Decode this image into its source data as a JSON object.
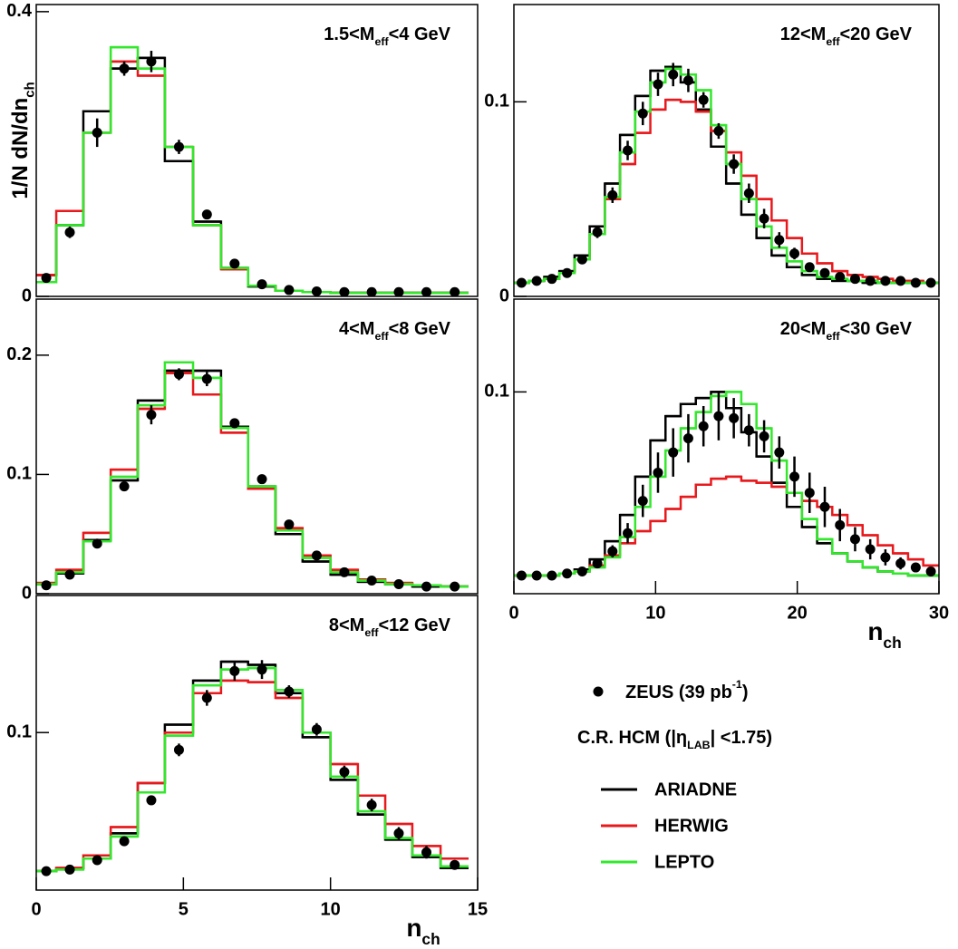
{
  "chart_data": [
    {
      "type": "histogram",
      "label": [
        {
          "text": "1.5<M"
        },
        {
          "text": "eff",
          "pos": "sub"
        },
        {
          "text": "<4 GeV"
        }
      ],
      "ylabel": [
        {
          "text": "1/N dN/dn"
        },
        {
          "text": "ch",
          "pos": "sub"
        }
      ],
      "xlim": [
        0,
        15
      ],
      "ylim": [
        0,
        0.41
      ],
      "yticks": [
        0,
        0.4
      ],
      "bins": [
        0,
        0.68,
        1.6,
        2.53,
        3.45,
        4.37,
        5.33,
        6.28,
        7.2,
        8.13,
        9.05,
        10,
        10.93,
        11.86,
        12.78,
        13.74,
        14.69
      ],
      "series": [
        {
          "name": "ARIADNE",
          "color": "#000000",
          "values": [
            0.03,
            0.1,
            0.26,
            0.32,
            0.335,
            0.19,
            0.105,
            0.04,
            0.014,
            0.008,
            0.006,
            0.005,
            0.005,
            0.005,
            0.005,
            0.005
          ]
        },
        {
          "name": "HERWIG",
          "color": "#e8191c",
          "values": [
            0.03,
            0.12,
            0.23,
            0.33,
            0.31,
            0.21,
            0.1,
            0.038,
            0.015,
            0.008,
            0.006,
            0.005,
            0.005,
            0.005,
            0.005,
            0.005
          ]
        },
        {
          "name": "LEPTO",
          "color": "#33e82c",
          "values": [
            0.02,
            0.1,
            0.23,
            0.35,
            0.32,
            0.21,
            0.1,
            0.04,
            0.015,
            0.008,
            0.006,
            0.005,
            0.005,
            0.005,
            0.005,
            0.005
          ]
        }
      ],
      "points": {
        "name": [
          {
            "text": "ZEUS (39 pb"
          },
          {
            "text": "-1",
            "pos": "sup"
          },
          {
            "text": ")"
          }
        ],
        "color": "#000000",
        "x": [
          0.34,
          1.14,
          2.07,
          2.99,
          3.91,
          4.85,
          5.8,
          6.74,
          7.67,
          8.59,
          9.53,
          10.47,
          11.4,
          12.32,
          13.26,
          14.22
        ],
        "values": [
          0.026,
          0.09,
          0.23,
          0.32,
          0.33,
          0.21,
          0.115,
          0.046,
          0.017,
          0.009,
          0.007,
          0.006,
          0.006,
          0.006,
          0.006,
          0.006
        ],
        "errors": [
          0.003,
          0.008,
          0.02,
          0.01,
          0.015,
          0.01,
          0.006,
          0.004,
          0.002,
          0.001,
          0.001,
          0.001,
          0.001,
          0.001,
          0.001,
          0.001
        ]
      }
    },
    {
      "type": "histogram",
      "label": [
        {
          "text": "4<M"
        },
        {
          "text": "eff",
          "pos": "sub"
        },
        {
          "text": "<8 GeV"
        }
      ],
      "xlim": [
        0,
        15
      ],
      "ylim": [
        0,
        0.247
      ],
      "yticks": [
        0,
        0.1,
        0.2
      ],
      "bins": [
        0,
        0.68,
        1.6,
        2.53,
        3.45,
        4.37,
        5.33,
        6.28,
        7.2,
        8.13,
        9.05,
        10,
        10.93,
        11.86,
        12.78,
        13.74,
        14.69
      ],
      "series": [
        {
          "color": "#000000",
          "values": [
            0.008,
            0.017,
            0.045,
            0.095,
            0.162,
            0.187,
            0.187,
            0.14,
            0.09,
            0.05,
            0.027,
            0.016,
            0.01,
            0.008,
            0.006,
            0.006
          ]
        },
        {
          "color": "#e8191c",
          "values": [
            0.009,
            0.02,
            0.051,
            0.104,
            0.155,
            0.185,
            0.167,
            0.135,
            0.088,
            0.055,
            0.032,
            0.02,
            0.012,
            0.009,
            0.007,
            0.006
          ]
        },
        {
          "color": "#33e82c",
          "values": [
            0.008,
            0.018,
            0.044,
            0.098,
            0.158,
            0.194,
            0.181,
            0.139,
            0.09,
            0.053,
            0.03,
            0.018,
            0.011,
            0.008,
            0.007,
            0.006
          ]
        }
      ],
      "points": {
        "color": "#000000",
        "x": [
          0.34,
          1.14,
          2.07,
          2.99,
          3.91,
          4.85,
          5.8,
          6.74,
          7.67,
          8.59,
          9.53,
          10.47,
          11.4,
          12.32,
          13.26,
          14.22
        ],
        "values": [
          0.007,
          0.016,
          0.042,
          0.09,
          0.15,
          0.184,
          0.18,
          0.143,
          0.096,
          0.058,
          0.032,
          0.018,
          0.011,
          0.008,
          0.006,
          0.006
        ],
        "errors": [
          0.001,
          0.002,
          0.003,
          0.004,
          0.008,
          0.005,
          0.006,
          0.004,
          0.003,
          0.002,
          0.002,
          0.002,
          0.001,
          0.001,
          0.001,
          0.001
        ]
      }
    },
    {
      "type": "histogram",
      "label": [
        {
          "text": "8<M"
        },
        {
          "text": "eff",
          "pos": "sub"
        },
        {
          "text": "<12 GeV"
        }
      ],
      "xlabel": [
        {
          "text": "n"
        },
        {
          "text": "ch",
          "pos": "sub"
        }
      ],
      "xlim": [
        0,
        15
      ],
      "ylim": [
        0,
        0.187
      ],
      "yticks": [
        0.1
      ],
      "xticks": [
        0,
        5,
        10,
        15
      ],
      "bins": [
        0,
        0.68,
        1.6,
        2.53,
        3.45,
        4.37,
        5.33,
        6.28,
        7.2,
        8.13,
        9.05,
        10,
        10.93,
        11.86,
        12.78,
        13.74,
        14.69
      ],
      "series": [
        {
          "color": "#000000",
          "values": [
            0.012,
            0.014,
            0.02,
            0.036,
            0.068,
            0.105,
            0.133,
            0.145,
            0.143,
            0.125,
            0.097,
            0.07,
            0.048,
            0.032,
            0.021,
            0.014
          ]
        },
        {
          "color": "#e8191c",
          "values": [
            0.012,
            0.014,
            0.022,
            0.04,
            0.068,
            0.1,
            0.125,
            0.133,
            0.132,
            0.122,
            0.1,
            0.08,
            0.06,
            0.042,
            0.028,
            0.02
          ]
        },
        {
          "color": "#33e82c",
          "values": [
            0.012,
            0.013,
            0.02,
            0.034,
            0.062,
            0.098,
            0.13,
            0.14,
            0.141,
            0.127,
            0.1,
            0.072,
            0.05,
            0.033,
            0.022,
            0.015
          ]
        }
      ],
      "points": {
        "color": "#000000",
        "x": [
          0.34,
          1.14,
          2.07,
          2.99,
          3.91,
          4.85,
          5.8,
          6.74,
          7.67,
          8.59,
          9.53,
          10.47,
          11.4,
          12.32,
          13.26,
          14.22
        ],
        "values": [
          0.012,
          0.013,
          0.019,
          0.031,
          0.057,
          0.089,
          0.122,
          0.139,
          0.14,
          0.126,
          0.102,
          0.075,
          0.054,
          0.036,
          0.024,
          0.016
        ],
        "errors": [
          0.001,
          0.001,
          0.002,
          0.002,
          0.003,
          0.004,
          0.005,
          0.006,
          0.006,
          0.004,
          0.004,
          0.004,
          0.004,
          0.004,
          0.004,
          0.002
        ]
      }
    },
    {
      "type": "histogram",
      "label": [
        {
          "text": "12<M"
        },
        {
          "text": "eff",
          "pos": "sub"
        },
        {
          "text": "<20 GeV"
        }
      ],
      "xlim": [
        0,
        30
      ],
      "ylim": [
        0,
        0.15
      ],
      "yticks": [
        0,
        0.1
      ],
      "bins": [
        0,
        1.07,
        2.14,
        3.21,
        4.28,
        5.35,
        6.42,
        7.49,
        8.56,
        9.63,
        10.7,
        11.77,
        12.84,
        13.91,
        14.98,
        16.05,
        17.12,
        18.19,
        19.26,
        20.33,
        21.4,
        22.47,
        23.54,
        24.61,
        25.68,
        26.75,
        27.82,
        28.89,
        29.96
      ],
      "series": [
        {
          "color": "#000000",
          "values": [
            0.007,
            0.008,
            0.01,
            0.013,
            0.021,
            0.036,
            0.058,
            0.083,
            0.103,
            0.116,
            0.118,
            0.11,
            0.096,
            0.077,
            0.058,
            0.042,
            0.03,
            0.021,
            0.015,
            0.011,
            0.009,
            0.008,
            0.008,
            0.007,
            0.007,
            0.007,
            0.007,
            0.007
          ]
        },
        {
          "color": "#e8191c",
          "values": [
            0.007,
            0.008,
            0.009,
            0.012,
            0.019,
            0.032,
            0.05,
            0.068,
            0.084,
            0.096,
            0.101,
            0.1,
            0.095,
            0.085,
            0.074,
            0.062,
            0.05,
            0.039,
            0.03,
            0.022,
            0.017,
            0.013,
            0.011,
            0.01,
            0.009,
            0.008,
            0.008,
            0.007
          ]
        },
        {
          "color": "#33e82c",
          "values": [
            0.007,
            0.008,
            0.009,
            0.012,
            0.019,
            0.032,
            0.051,
            0.074,
            0.095,
            0.11,
            0.117,
            0.114,
            0.106,
            0.088,
            0.068,
            0.05,
            0.036,
            0.025,
            0.018,
            0.013,
            0.01,
            0.009,
            0.008,
            0.008,
            0.007,
            0.007,
            0.007,
            0.007
          ]
        }
      ],
      "points": {
        "color": "#000000",
        "x": [
          0.54,
          1.61,
          2.68,
          3.75,
          4.82,
          5.89,
          6.96,
          8.03,
          9.1,
          10.17,
          11.24,
          12.31,
          13.38,
          14.45,
          15.52,
          16.59,
          17.66,
          18.73,
          19.8,
          20.87,
          21.94,
          23.01,
          24.08,
          25.15,
          26.22,
          27.29,
          28.36,
          29.43
        ],
        "values": [
          0.007,
          0.008,
          0.009,
          0.012,
          0.019,
          0.033,
          0.052,
          0.075,
          0.094,
          0.109,
          0.114,
          0.111,
          0.101,
          0.085,
          0.068,
          0.053,
          0.04,
          0.029,
          0.022,
          0.015,
          0.012,
          0.01,
          0.009,
          0.008,
          0.008,
          0.008,
          0.007,
          0.007
        ],
        "errors": [
          0.001,
          0.001,
          0.001,
          0.001,
          0.002,
          0.003,
          0.004,
          0.005,
          0.006,
          0.006,
          0.006,
          0.006,
          0.004,
          0.004,
          0.005,
          0.005,
          0.005,
          0.004,
          0.003,
          0.002,
          0.002,
          0.001,
          0.001,
          0.001,
          0.001,
          0.001,
          0.001,
          0.001
        ]
      }
    },
    {
      "type": "histogram",
      "label": [
        {
          "text": "20<M"
        },
        {
          "text": "eff",
          "pos": "sub"
        },
        {
          "text": "<30 GeV"
        }
      ],
      "xlabel": [
        {
          "text": "n"
        },
        {
          "text": "ch",
          "pos": "sub"
        }
      ],
      "xlim": [
        0,
        30
      ],
      "ylim": [
        0,
        0.146
      ],
      "yticks": [
        0.1
      ],
      "xticks": [
        0,
        10,
        20,
        30
      ],
      "bins": [
        0,
        1.07,
        2.14,
        3.21,
        4.28,
        5.35,
        6.42,
        7.49,
        8.56,
        9.63,
        10.7,
        11.77,
        12.84,
        13.91,
        14.98,
        16.05,
        17.12,
        18.19,
        19.26,
        20.33,
        21.4,
        22.47,
        23.54,
        24.61,
        25.68,
        26.75,
        27.82,
        28.89,
        29.96
      ],
      "series": [
        {
          "color": "#000000",
          "values": [
            0.009,
            0.009,
            0.009,
            0.01,
            0.012,
            0.017,
            0.026,
            0.039,
            0.058,
            0.076,
            0.088,
            0.094,
            0.097,
            0.1,
            0.092,
            0.08,
            0.068,
            0.055,
            0.043,
            0.033,
            0.025,
            0.02,
            0.016,
            0.013,
            0.011,
            0.01,
            0.009,
            0.009
          ]
        },
        {
          "color": "#e8191c",
          "values": [
            0.009,
            0.009,
            0.009,
            0.01,
            0.011,
            0.014,
            0.019,
            0.025,
            0.031,
            0.036,
            0.042,
            0.048,
            0.054,
            0.057,
            0.058,
            0.056,
            0.055,
            0.053,
            0.05,
            0.046,
            0.043,
            0.039,
            0.034,
            0.029,
            0.024,
            0.02,
            0.017,
            0.014
          ]
        },
        {
          "color": "#33e82c",
          "values": [
            0.009,
            0.009,
            0.009,
            0.01,
            0.011,
            0.013,
            0.018,
            0.028,
            0.043,
            0.058,
            0.071,
            0.082,
            0.09,
            0.098,
            0.1,
            0.094,
            0.082,
            0.066,
            0.05,
            0.037,
            0.027,
            0.02,
            0.016,
            0.013,
            0.011,
            0.01,
            0.009,
            0.009
          ]
        }
      ],
      "points": {
        "color": "#000000",
        "x": [
          0.54,
          1.61,
          2.68,
          3.75,
          4.82,
          5.89,
          6.96,
          8.03,
          9.1,
          10.17,
          11.24,
          12.31,
          13.38,
          14.45,
          15.52,
          16.59,
          17.66,
          18.73,
          19.8,
          20.87,
          21.94,
          23.01,
          24.08,
          25.15,
          26.22,
          27.29,
          28.36,
          29.43
        ],
        "values": [
          0.009,
          0.009,
          0.009,
          0.01,
          0.011,
          0.015,
          0.021,
          0.03,
          0.046,
          0.06,
          0.07,
          0.077,
          0.083,
          0.088,
          0.087,
          0.081,
          0.078,
          0.07,
          0.058,
          0.05,
          0.043,
          0.034,
          0.027,
          0.022,
          0.018,
          0.015,
          0.013,
          0.011
        ],
        "errors": [
          0.001,
          0.001,
          0.001,
          0.001,
          0.002,
          0.002,
          0.003,
          0.005,
          0.008,
          0.01,
          0.012,
          0.012,
          0.01,
          0.012,
          0.01,
          0.008,
          0.008,
          0.008,
          0.01,
          0.01,
          0.01,
          0.008,
          0.006,
          0.005,
          0.004,
          0.003,
          0.002,
          0.002
        ]
      }
    }
  ],
  "legend_note": [
    {
      "text": "C.R. HCM (|η"
    },
    {
      "text": "LAB",
      "pos": "sub"
    },
    {
      "text": "| <1.75)"
    }
  ]
}
